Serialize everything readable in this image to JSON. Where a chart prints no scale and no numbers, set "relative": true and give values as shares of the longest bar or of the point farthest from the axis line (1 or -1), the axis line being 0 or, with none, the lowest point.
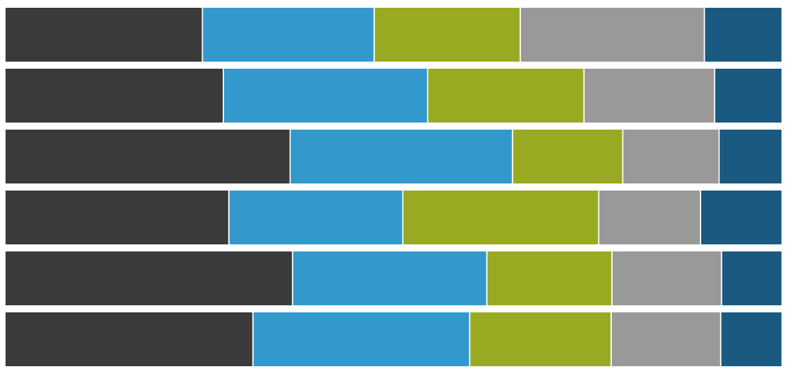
{
  "chart_data": {
    "type": "bar",
    "orientation": "horizontal",
    "stacked": true,
    "relative": true,
    "categories": [
      null,
      null,
      null,
      null,
      null,
      null
    ],
    "series": [
      {
        "color": "#3a3a3a",
        "values": [
          0.254,
          0.281,
          0.367,
          0.288,
          0.37,
          0.319
        ]
      },
      {
        "color": "#3399cc",
        "values": [
          0.221,
          0.263,
          0.286,
          0.224,
          0.25,
          0.279
        ]
      },
      {
        "color": "#99aa22",
        "values": [
          0.188,
          0.201,
          0.142,
          0.252,
          0.161,
          0.182
        ]
      },
      {
        "color": "#999999",
        "values": [
          0.237,
          0.168,
          0.124,
          0.131,
          0.141,
          0.141
        ]
      },
      {
        "color": "#1a5a80",
        "values": [
          0.1,
          0.087,
          0.081,
          0.105,
          0.078,
          0.079
        ]
      }
    ]
  }
}
